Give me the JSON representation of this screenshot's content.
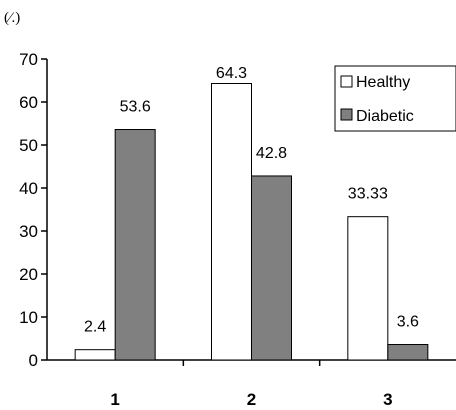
{
  "chart_data": {
    "type": "bar",
    "unit_label": "(⁄.)",
    "categories": [
      "1",
      "2",
      "3"
    ],
    "series": [
      {
        "name": "Healthy",
        "values": [
          2.4,
          64.3,
          33.33
        ],
        "labels": [
          "2.4",
          "64.3",
          "33.33"
        ],
        "color": "#ffffff"
      },
      {
        "name": "Diabetic",
        "values": [
          53.6,
          42.8,
          3.6
        ],
        "labels": [
          "53.6",
          "42.8",
          "3.6"
        ],
        "color": "#808080"
      }
    ],
    "ylim": [
      0,
      70
    ],
    "yticks": [
      "0",
      "10",
      "20",
      "30",
      "40",
      "50",
      "60",
      "70"
    ],
    "grid": false,
    "legend_position": "top-right"
  }
}
